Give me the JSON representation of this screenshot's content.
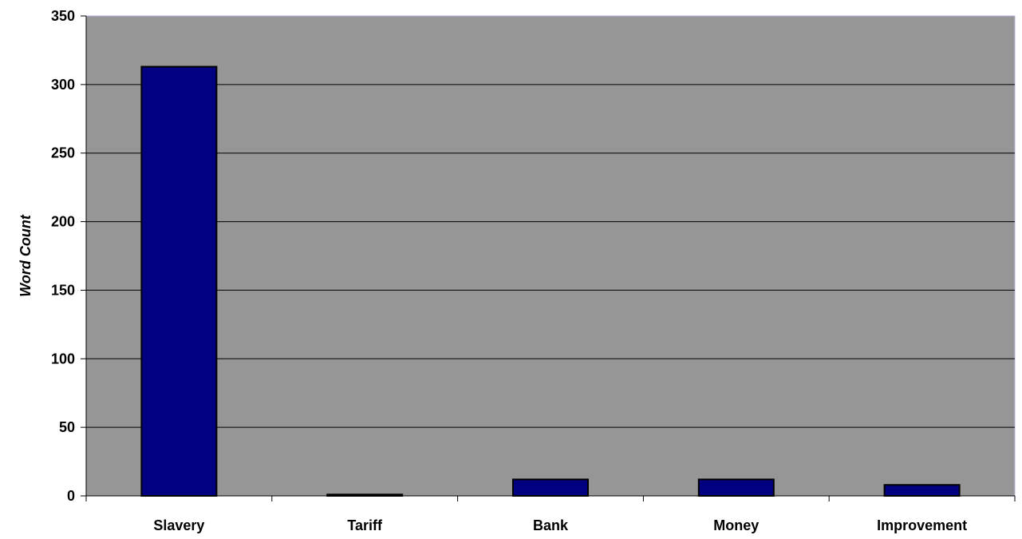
{
  "chart_data": {
    "type": "bar",
    "title": "",
    "xlabel": "",
    "ylabel": "Word Count",
    "categories": [
      "Slavery",
      "Tariff",
      "Bank",
      "Money",
      "Improvement"
    ],
    "values": [
      313,
      1,
      12,
      12,
      8
    ],
    "ylim": [
      0,
      350
    ],
    "yticks": [
      0,
      50,
      100,
      150,
      200,
      250,
      300,
      350
    ],
    "grid": true,
    "legend": "none",
    "colors": {
      "plot_background": "#969696",
      "bar_fill": "#000080",
      "bar_stroke": "#000000",
      "gridline": "#000000",
      "plot_border": "#b3b3d9"
    }
  }
}
